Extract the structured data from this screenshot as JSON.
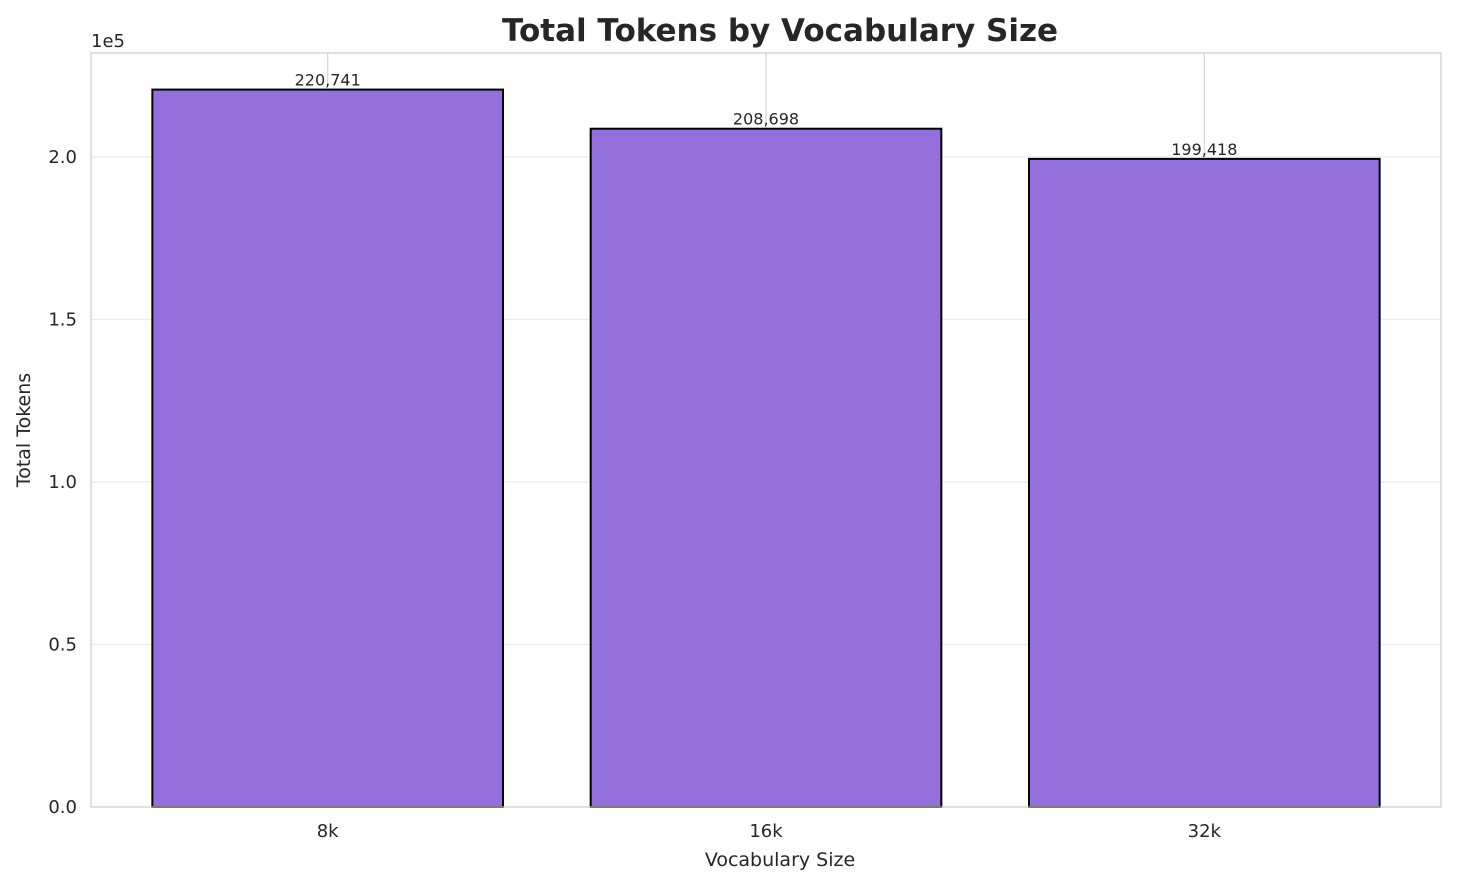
{
  "chart_data": {
    "type": "bar",
    "title": "Total Tokens by Vocabulary Size",
    "xlabel": "Vocabulary Size",
    "ylabel": "Total Tokens",
    "categories": [
      "8k",
      "16k",
      "32k"
    ],
    "values": [
      220741,
      208698,
      199418
    ],
    "data_labels": [
      "220,741",
      "208,698",
      "199,418"
    ],
    "ylim": [
      0,
      232000
    ],
    "yticks": [
      0,
      50000,
      100000,
      150000,
      200000
    ],
    "ytick_labels": [
      "0.0",
      "0.5",
      "1.0",
      "1.5",
      "2.0"
    ],
    "y_offset_label": "1e5",
    "grid": true,
    "bar_color": "#9370DB",
    "edge_color": "#000000"
  }
}
